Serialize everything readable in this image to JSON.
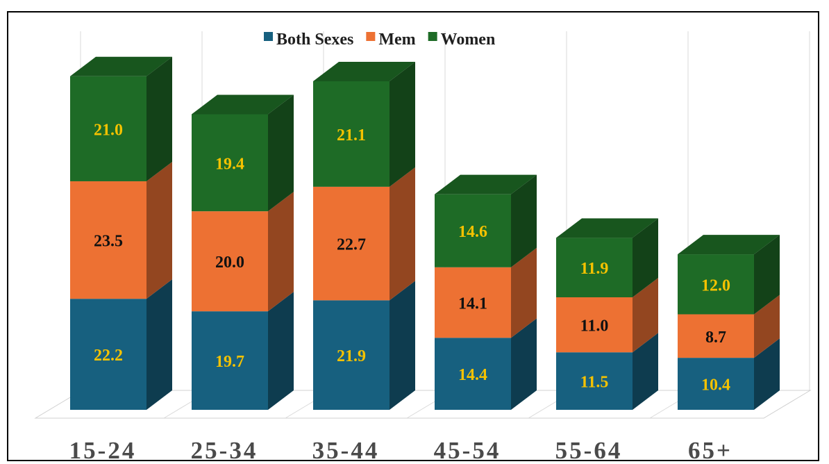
{
  "chart_data": {
    "type": "bar",
    "stacked": true,
    "style": "3d-stacked-column",
    "categories": [
      "15-24",
      "25-34",
      "35-44",
      "45-54",
      "55-64",
      "65+"
    ],
    "series": [
      {
        "name": "Both Sexes",
        "values": [
          22.2,
          19.7,
          21.9,
          14.4,
          11.5,
          10.4
        ],
        "color": "#17607f",
        "label_color": "#f5c200"
      },
      {
        "name": "Mem",
        "values": [
          23.5,
          20.0,
          22.7,
          14.1,
          11.0,
          8.7
        ],
        "color": "#ed7133",
        "label_color": "#111111"
      },
      {
        "name": "Women",
        "values": [
          21.0,
          19.4,
          21.1,
          14.6,
          11.9,
          12.0
        ],
        "color": "#1e6b26",
        "label_color": "#f5c200"
      }
    ],
    "legend_position": "top-center",
    "grid": "vertical-lines",
    "data_labels": true
  }
}
